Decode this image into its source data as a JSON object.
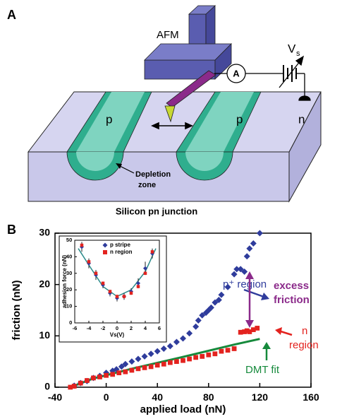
{
  "panel_a": {
    "panel_label": "A",
    "afm_label": "AFM",
    "ammeter_label": "A",
    "voltage_label": "V",
    "voltage_subscript": "s",
    "region_labels": [
      "p",
      "p",
      "n"
    ],
    "depletion_label": [
      "Depletion",
      "zone"
    ],
    "caption": "Silicon pn junction"
  },
  "panel_b": {
    "panel_label": "B"
  },
  "chart_data": [
    {
      "type": "scatter",
      "xlabel": "applied load (nN)",
      "ylabel": "friction (nN)",
      "xlim": [
        -40,
        160
      ],
      "xticks": [
        -40,
        0,
        40,
        80,
        120,
        160
      ],
      "ylim": [
        0,
        30
      ],
      "yticks": [
        0,
        10,
        20,
        30
      ],
      "series": [
        {
          "name": "p stripe",
          "color": "#2f3c9c",
          "marker": "diamond",
          "x": [
            -25,
            -20,
            -15,
            -10,
            -5,
            0,
            5,
            8,
            12,
            15,
            20,
            25,
            30,
            35,
            40,
            45,
            50,
            55,
            60,
            65,
            70,
            72,
            75,
            78,
            80,
            82,
            85,
            88,
            90,
            95,
            100,
            102,
            105,
            108,
            110,
            112,
            115,
            120
          ],
          "values": [
            0.3,
            0.8,
            1.2,
            1.8,
            2.2,
            2.8,
            3.2,
            3.5,
            4,
            4.5,
            5,
            5.5,
            6,
            6.5,
            7,
            7.5,
            8,
            8.8,
            9.5,
            10.5,
            11.8,
            13,
            14,
            14.5,
            15,
            15.5,
            16.5,
            17,
            18,
            19.5,
            22,
            23,
            23,
            22.5,
            25.5,
            27,
            28,
            30
          ]
        },
        {
          "name": "n region",
          "color": "#e3231f",
          "marker": "square",
          "x": [
            -28,
            -25,
            -20,
            -15,
            -10,
            -5,
            0,
            5,
            10,
            15,
            20,
            25,
            30,
            35,
            40,
            45,
            50,
            55,
            60,
            65,
            70,
            75,
            80,
            85,
            90,
            95,
            100,
            105,
            108,
            110,
            112,
            115,
            118
          ],
          "values": [
            0,
            0.2,
            0.8,
            1.3,
            1.8,
            2,
            2.3,
            2.5,
            2.8,
            3,
            3.3,
            3.6,
            3.8,
            4,
            4.3,
            4.5,
            4.8,
            5,
            5.2,
            5.5,
            5.8,
            6,
            6.3,
            6.5,
            7,
            7.2,
            7.5,
            10.7,
            10.8,
            11,
            10.8,
            11.2,
            11.5
          ]
        }
      ],
      "fit": {
        "color": "#168a3c",
        "x": [
          -28,
          -10,
          20,
          60,
          100,
          120
        ],
        "values": [
          0,
          1.7,
          3.6,
          5.9,
          8.3,
          9.4
        ]
      },
      "annotations": [
        "p⁺ region",
        "excess",
        "friction",
        "n",
        "region",
        "DMT fit"
      ]
    },
    {
      "type": "scatter",
      "xlabel": "Vs(V)",
      "ylabel": "adhesion force (nN)",
      "xlim": [
        -6,
        6
      ],
      "xticks": [
        -6,
        -4,
        -2,
        0,
        2,
        4,
        6
      ],
      "ylim": [
        0,
        50
      ],
      "yticks": [
        0,
        10,
        20,
        30,
        40,
        50
      ],
      "series": [
        {
          "name": "p stripe",
          "color": "#2f3c9c",
          "marker": "diamond",
          "x": [
            -5,
            -4,
            -3,
            -2,
            -1,
            0,
            1,
            2,
            3,
            4,
            5
          ],
          "values": [
            46,
            36,
            29,
            23,
            18,
            15,
            16,
            19,
            24,
            33,
            42
          ],
          "errors": [
            3,
            3,
            3,
            2,
            2,
            2,
            2,
            2,
            3,
            4,
            3
          ]
        },
        {
          "name": "n region",
          "color": "#e3231f",
          "marker": "square",
          "x": [
            -5,
            -4,
            -3,
            -2,
            -1,
            0,
            1,
            2,
            3,
            4,
            5
          ],
          "values": [
            47,
            37,
            30,
            24,
            19,
            16,
            16,
            18,
            22,
            30,
            43
          ]
        }
      ],
      "fit": {
        "color": "#2a8a8a",
        "x": [
          -5.5,
          -4,
          -2,
          0,
          2,
          4,
          5.5
        ],
        "values": [
          45,
          35,
          22,
          16,
          20,
          31,
          45
        ]
      }
    }
  ]
}
